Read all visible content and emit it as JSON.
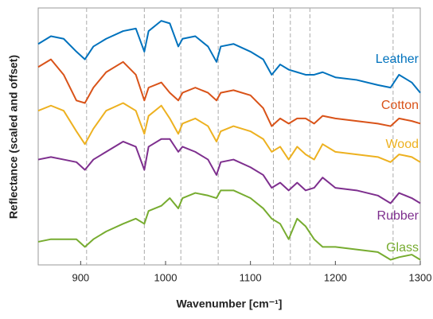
{
  "chart_data": {
    "type": "line",
    "xlabel": "Wavenumber [cm⁻¹]",
    "ylabel": "Reflectance (scaled and offset)",
    "x": [
      850,
      865,
      880,
      895,
      905,
      915,
      930,
      950,
      965,
      975,
      980,
      995,
      1005,
      1015,
      1020,
      1035,
      1050,
      1060,
      1065,
      1080,
      1100,
      1115,
      1125,
      1135,
      1145,
      1155,
      1165,
      1175,
      1185,
      1200,
      1225,
      1250,
      1265,
      1275,
      1290,
      1300
    ],
    "xlim": [
      850,
      1300
    ],
    "xticks": [
      900,
      1000,
      1100,
      1200,
      1300
    ],
    "ylim": [
      0,
      10
    ],
    "reference_lines": [
      907,
      975,
      1018,
      1062,
      1127,
      1147,
      1170,
      1268
    ],
    "series": [
      {
        "name": "Leather",
        "color": "#0072bd",
        "values": [
          8.6,
          8.9,
          8.8,
          8.3,
          8.0,
          8.5,
          8.8,
          9.1,
          9.2,
          8.3,
          9.1,
          9.5,
          9.4,
          8.5,
          8.8,
          8.9,
          8.5,
          7.9,
          8.5,
          8.6,
          8.3,
          8.0,
          7.4,
          7.8,
          7.6,
          7.5,
          7.4,
          7.4,
          7.5,
          7.3,
          7.2,
          7.0,
          6.9,
          7.4,
          7.1,
          6.7
        ]
      },
      {
        "name": "Cotton",
        "color": "#d95319",
        "values": [
          7.7,
          8.0,
          7.4,
          6.4,
          6.3,
          6.9,
          7.5,
          7.9,
          7.4,
          6.4,
          6.9,
          7.1,
          6.7,
          6.4,
          6.7,
          6.9,
          6.7,
          6.4,
          6.7,
          6.8,
          6.6,
          6.1,
          5.4,
          5.7,
          5.5,
          5.7,
          5.7,
          5.5,
          5.8,
          5.7,
          5.6,
          5.5,
          5.4,
          5.7,
          5.6,
          5.5
        ]
      },
      {
        "name": "Wood",
        "color": "#edb120",
        "values": [
          6.0,
          6.2,
          6.0,
          5.2,
          4.7,
          5.3,
          6.0,
          6.3,
          6.0,
          5.1,
          5.8,
          6.2,
          5.7,
          5.1,
          5.5,
          5.7,
          5.4,
          4.8,
          5.2,
          5.4,
          5.2,
          4.9,
          4.4,
          4.6,
          4.1,
          4.6,
          4.3,
          4.1,
          4.7,
          4.4,
          4.3,
          4.2,
          4.0,
          4.3,
          4.2,
          4.0
        ]
      },
      {
        "name": "Rubber",
        "color": "#7e2f8e",
        "values": [
          4.1,
          4.2,
          4.1,
          4.0,
          3.7,
          4.1,
          4.4,
          4.8,
          4.6,
          3.7,
          4.6,
          4.9,
          4.9,
          4.4,
          4.6,
          4.4,
          4.1,
          3.5,
          4.0,
          4.1,
          3.8,
          3.5,
          3.0,
          3.2,
          2.9,
          3.2,
          2.9,
          3.0,
          3.4,
          3.0,
          2.9,
          2.7,
          2.4,
          2.8,
          2.6,
          2.4
        ]
      },
      {
        "name": "Glass",
        "color": "#77ac30",
        "values": [
          0.9,
          1.0,
          1.0,
          1.0,
          0.7,
          1.0,
          1.3,
          1.6,
          1.8,
          1.6,
          2.1,
          2.3,
          2.6,
          2.2,
          2.6,
          2.8,
          2.7,
          2.6,
          2.9,
          2.9,
          2.6,
          2.2,
          1.8,
          1.6,
          1.0,
          1.8,
          1.5,
          1.0,
          0.7,
          0.7,
          0.6,
          0.5,
          0.2,
          0.3,
          0.4,
          0.2
        ]
      }
    ]
  }
}
